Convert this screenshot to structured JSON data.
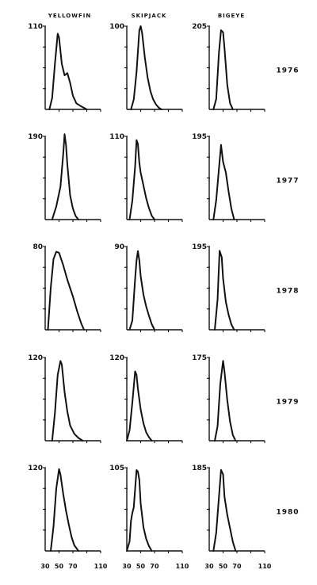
{
  "chart_data": {
    "type": "line",
    "title": "",
    "xlabel": "",
    "ylabel": "",
    "xlim": [
      30,
      110
    ],
    "x_ticks": [
      "30",
      "50",
      "70",
      "110"
    ],
    "columns": [
      "YELLOWFIN",
      "SKIPJACK",
      "BIGEYE"
    ],
    "rows": [
      "1976",
      "1977",
      "1978",
      "1979",
      "1980"
    ],
    "grid": false,
    "panels": [
      {
        "species": "YELLOWFIN",
        "year": "1976",
        "ymax_label": "110",
        "ymax": 110,
        "x": [
          36,
          40,
          44,
          48,
          50,
          54,
          58,
          62,
          66,
          70,
          75,
          80,
          90
        ],
        "y": [
          0,
          15,
          60,
          100,
          95,
          60,
          45,
          48,
          35,
          18,
          8,
          5,
          0
        ]
      },
      {
        "species": "SKIPJACK",
        "year": "1976",
        "ymax_label": "100",
        "ymax": 100,
        "x": [
          36,
          40,
          44,
          48,
          50,
          52,
          56,
          60,
          64,
          68,
          72,
          76,
          80
        ],
        "y": [
          0,
          12,
          45,
          95,
          100,
          92,
          62,
          38,
          22,
          12,
          6,
          2,
          0
        ]
      },
      {
        "species": "BIGEYE",
        "year": "1976",
        "ymax_label": "205",
        "ymax": 205,
        "x": [
          36,
          40,
          44,
          47,
          50,
          52,
          56,
          60,
          64
        ],
        "y": [
          0,
          25,
          140,
          195,
          190,
          150,
          60,
          15,
          0
        ]
      },
      {
        "species": "YELLOWFIN",
        "year": "1977",
        "ymax_label": "190",
        "ymax": 190,
        "x": [
          40,
          46,
          52,
          56,
          58,
          60,
          62,
          66,
          70,
          74,
          78
        ],
        "y": [
          0,
          30,
          75,
          150,
          195,
          170,
          125,
          55,
          25,
          8,
          0
        ]
      },
      {
        "species": "SKIPJACK",
        "year": "1977",
        "ymax_label": "110",
        "ymax": 110,
        "x": [
          34,
          38,
          42,
          44,
          46,
          48,
          50,
          54,
          58,
          62,
          66,
          70
        ],
        "y": [
          0,
          25,
          70,
          105,
          100,
          75,
          62,
          45,
          28,
          15,
          5,
          0
        ]
      },
      {
        "species": "BIGEYE",
        "year": "1977",
        "ymax_label": "195",
        "ymax": 195,
        "x": [
          36,
          40,
          44,
          47,
          50,
          54,
          58,
          62,
          66
        ],
        "y": [
          0,
          45,
          120,
          175,
          135,
          110,
          65,
          25,
          0
        ]
      },
      {
        "species": "YELLOWFIN",
        "year": "1978",
        "ymax_label": "80",
        "ymax": 80,
        "x": [
          34,
          38,
          42,
          46,
          50,
          56,
          62,
          66,
          70,
          76,
          82,
          86
        ],
        "y": [
          0,
          40,
          68,
          75,
          74,
          62,
          48,
          40,
          32,
          18,
          6,
          0
        ]
      },
      {
        "species": "SKIPJACK",
        "year": "1978",
        "ymax_label": "90",
        "ymax": 90,
        "x": [
          34,
          38,
          42,
          44,
          46,
          48,
          50,
          54,
          58,
          62,
          66,
          70
        ],
        "y": [
          0,
          10,
          55,
          75,
          85,
          75,
          58,
          38,
          25,
          15,
          6,
          0
        ]
      },
      {
        "species": "BIGEYE",
        "year": "1978",
        "ymax_label": "195",
        "ymax": 195,
        "x": [
          38,
          42,
          45,
          48,
          50,
          54,
          58,
          62,
          66
        ],
        "y": [
          0,
          70,
          185,
          170,
          120,
          65,
          35,
          12,
          0
        ]
      },
      {
        "species": "YELLOWFIN",
        "year": "1979",
        "ymax_label": "120",
        "ymax": 120,
        "x": [
          40,
          44,
          48,
          52,
          54,
          58,
          62,
          66,
          72,
          78,
          84
        ],
        "y": [
          0,
          40,
          95,
          115,
          110,
          70,
          42,
          22,
          10,
          4,
          0
        ]
      },
      {
        "species": "SKIPJACK",
        "year": "1979",
        "ymax_label": "120",
        "ymax": 120,
        "x": [
          30,
          34,
          38,
          42,
          44,
          46,
          50,
          54,
          58,
          62,
          66
        ],
        "y": [
          0,
          15,
          55,
          100,
          95,
          75,
          45,
          25,
          12,
          5,
          0
        ]
      },
      {
        "species": "BIGEYE",
        "year": "1979",
        "ymax_label": "175",
        "ymax": 175,
        "x": [
          38,
          42,
          46,
          50,
          52,
          56,
          60,
          64,
          68
        ],
        "y": [
          0,
          30,
          120,
          168,
          145,
          85,
          40,
          12,
          0
        ]
      },
      {
        "species": "YELLOWFIN",
        "year": "1980",
        "ymax_label": "120",
        "ymax": 120,
        "x": [
          38,
          42,
          46,
          50,
          52,
          56,
          60,
          64,
          68,
          72,
          78
        ],
        "y": [
          0,
          35,
          90,
          118,
          110,
          82,
          58,
          38,
          20,
          8,
          0
        ]
      },
      {
        "species": "SKIPJACK",
        "year": "1980",
        "ymax_label": "105",
        "ymax": 105,
        "x": [
          30,
          34,
          36,
          38,
          40,
          42,
          44,
          46,
          48,
          50,
          54,
          58,
          62,
          66
        ],
        "y": [
          0,
          12,
          38,
          48,
          55,
          78,
          102,
          100,
          90,
          60,
          30,
          15,
          6,
          0
        ]
      },
      {
        "species": "BIGEYE",
        "year": "1980",
        "ymax_label": "185",
        "ymax": 185,
        "x": [
          36,
          40,
          44,
          47,
          50,
          52,
          56,
          60,
          64,
          68
        ],
        "y": [
          0,
          40,
          120,
          180,
          170,
          120,
          80,
          50,
          20,
          0
        ]
      }
    ]
  }
}
